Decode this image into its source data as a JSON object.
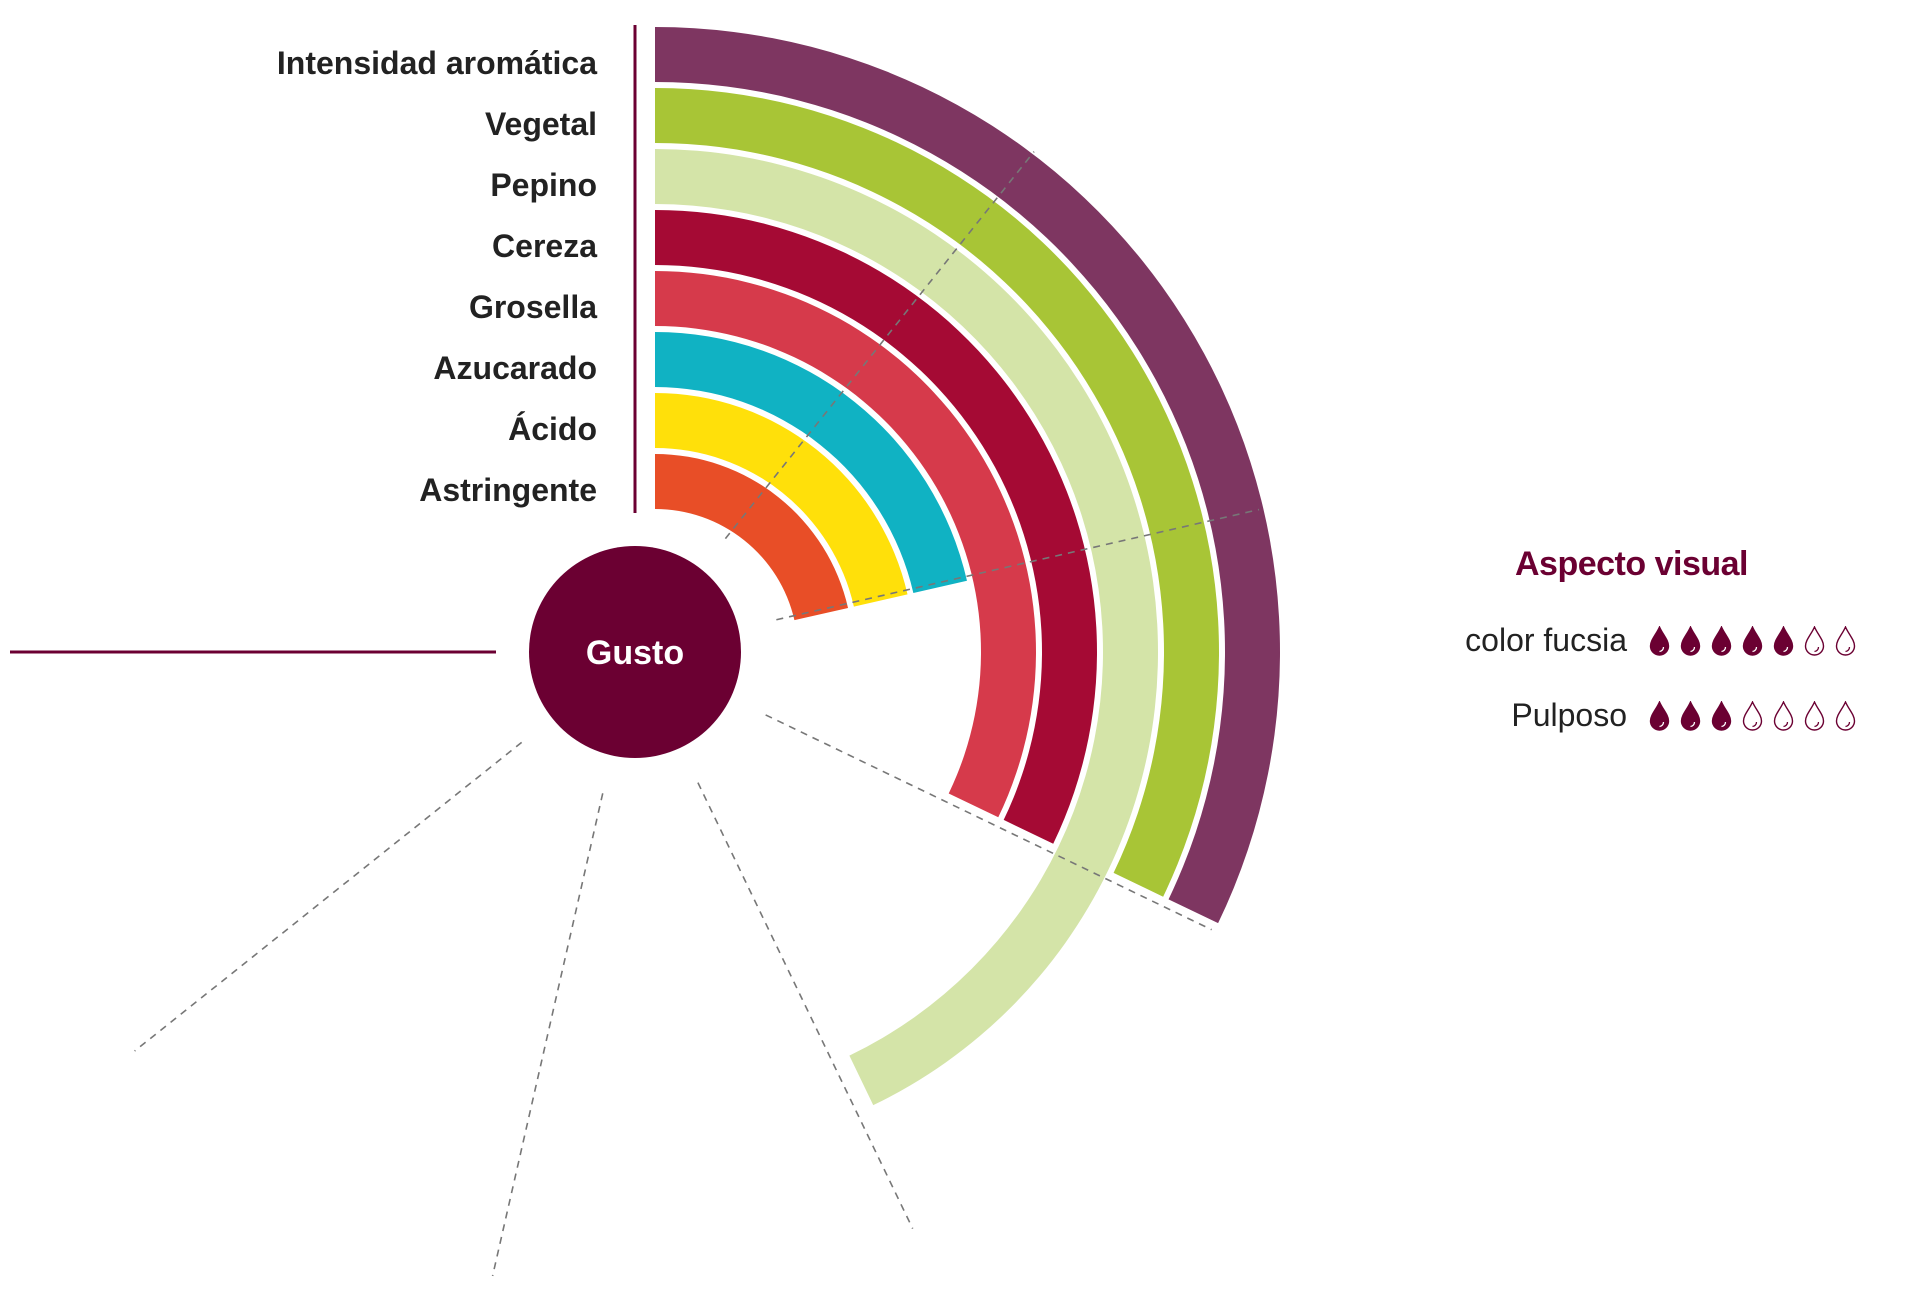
{
  "chart_data": {
    "type": "radial-bar",
    "center_label": "Gusto",
    "max_value": 7,
    "angular_span_degrees": 270,
    "grid": "dashed radial lines at each unit",
    "categories": [
      "Intensidad aromática",
      "Vegetal",
      "Pepino",
      "Cereza",
      "Grosella",
      "Azucarado",
      "Ácido",
      "Astringente"
    ],
    "values": [
      3,
      3,
      4,
      3,
      3,
      2,
      2,
      2
    ],
    "colors": [
      "#7e3661",
      "#a8c536",
      "#d4e4a8",
      "#a50a34",
      "#d63a4b",
      "#10b2c3",
      "#ffe00a",
      "#e84e27"
    ],
    "center_color": "#6b0032"
  },
  "visual_panel": {
    "title": "Aspecto visual",
    "max": 7,
    "rows": [
      {
        "label": "color fucsia",
        "value": 5
      },
      {
        "label": "Pulposo",
        "value": 3
      }
    ],
    "drop_color": "#6b0032"
  }
}
